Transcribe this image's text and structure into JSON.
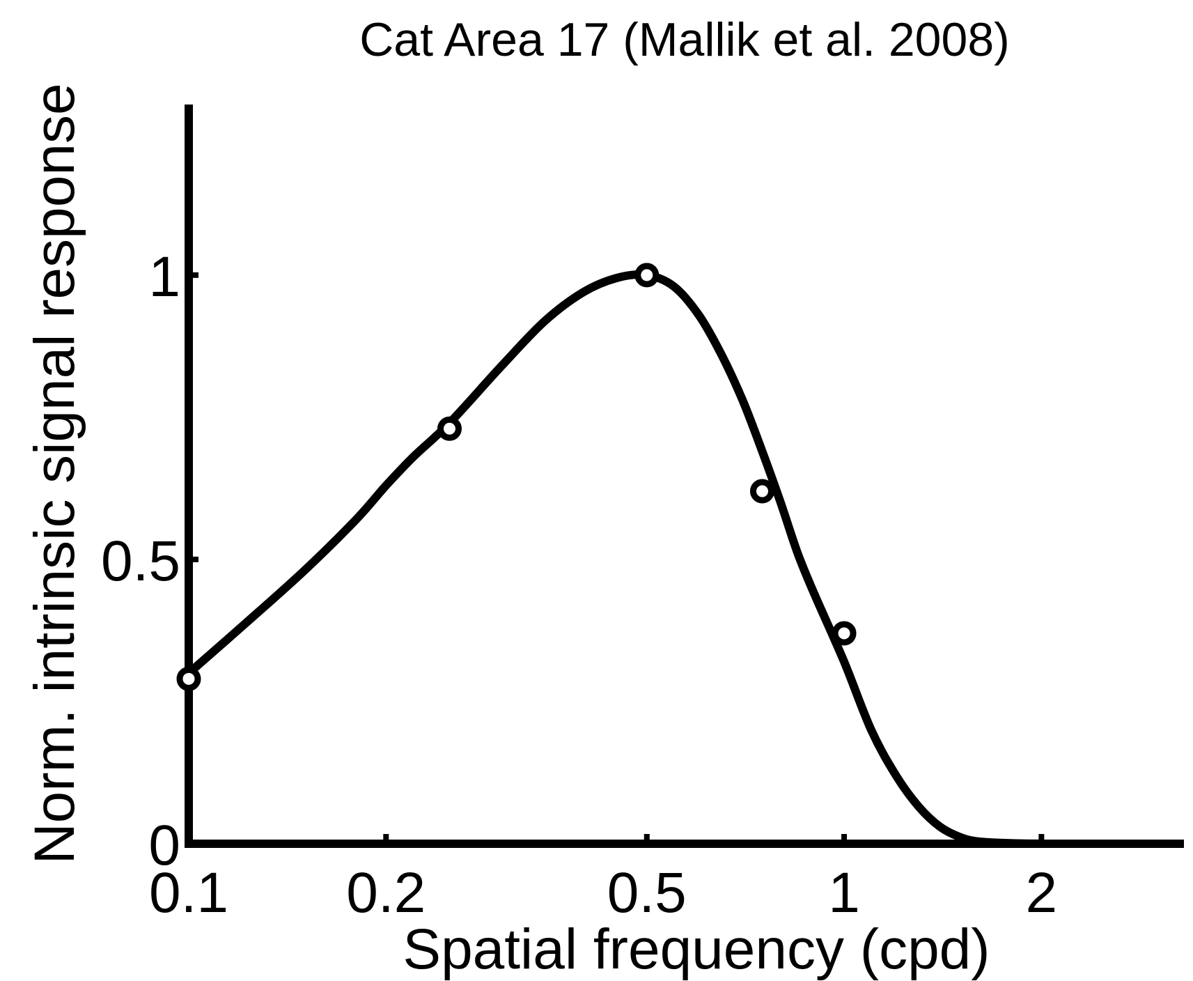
{
  "chart_data": {
    "type": "line",
    "title": "Cat Area 17 (Mallik et al. 2008)",
    "xlabel": "Spatial frequency (cpd)",
    "ylabel": "Norm. intrinsic signal response",
    "x_scale": "log",
    "xlim": [
      0.1,
      3.3
    ],
    "ylim": [
      0,
      1.3
    ],
    "x_ticks": [
      {
        "value": 0.1,
        "label": "0.1"
      },
      {
        "value": 0.2,
        "label": "0.2"
      },
      {
        "value": 0.5,
        "label": "0.5"
      },
      {
        "value": 1,
        "label": "1"
      },
      {
        "value": 2,
        "label": "2"
      }
    ],
    "y_ticks": [
      {
        "value": 0,
        "label": "0"
      },
      {
        "value": 0.5,
        "label": "0.5"
      },
      {
        "value": 1,
        "label": "1"
      }
    ],
    "grid": false,
    "series": [
      {
        "kind": "points",
        "x": [
          0.1,
          0.25,
          0.5,
          0.75,
          1.0
        ],
        "y": [
          0.29,
          0.73,
          1.0,
          0.62,
          0.37
        ]
      },
      {
        "kind": "fit-curve",
        "x": [
          0.1,
          0.12,
          0.15,
          0.18,
          0.2,
          0.22,
          0.25,
          0.3,
          0.35,
          0.4,
          0.45,
          0.5,
          0.55,
          0.6,
          0.65,
          0.7,
          0.75,
          0.8,
          0.85,
          0.9,
          1.0,
          1.1,
          1.2,
          1.3,
          1.4,
          1.5,
          1.6,
          1.8,
          2.0
        ],
        "y": [
          0.3,
          0.38,
          0.48,
          0.57,
          0.63,
          0.68,
          0.74,
          0.84,
          0.92,
          0.97,
          0.995,
          1.0,
          0.98,
          0.93,
          0.86,
          0.78,
          0.69,
          0.6,
          0.51,
          0.44,
          0.32,
          0.2,
          0.12,
          0.065,
          0.03,
          0.012,
          0.004,
          0.0008,
          0.0
        ]
      }
    ],
    "colors": {
      "line": "#000000",
      "marker": "#000000",
      "background": "#ffffff"
    }
  }
}
